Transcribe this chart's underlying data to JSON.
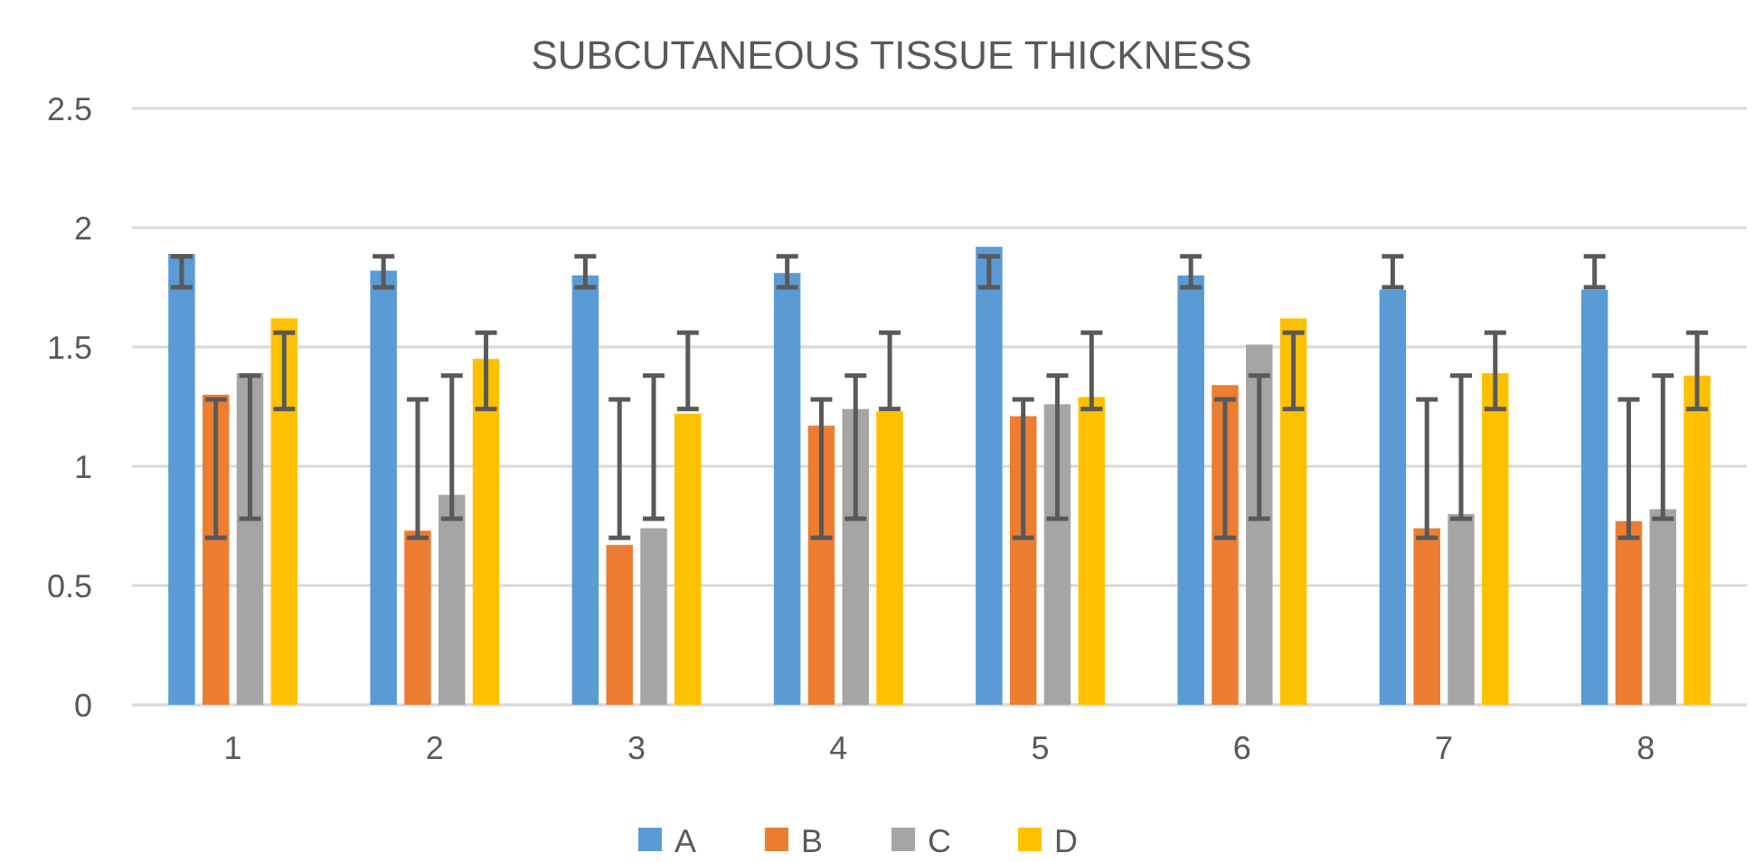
{
  "chart_data": {
    "type": "bar",
    "title": "SUBCUTANEOUS TISSUE THICKNESS",
    "categories": [
      "1",
      "2",
      "3",
      "4",
      "5",
      "6",
      "7",
      "8"
    ],
    "series": [
      {
        "name": "A",
        "color": "#5b9bd5",
        "values": [
          1.89,
          1.82,
          1.8,
          1.81,
          1.92,
          1.8,
          1.74,
          1.74
        ],
        "errors": [
          [
            1.75,
            1.88
          ],
          [
            1.75,
            1.88
          ],
          [
            1.75,
            1.88
          ],
          [
            1.75,
            1.88
          ],
          [
            1.75,
            1.88
          ],
          [
            1.75,
            1.88
          ],
          [
            1.75,
            1.88
          ],
          [
            1.75,
            1.88
          ]
        ]
      },
      {
        "name": "B",
        "color": "#ed7d31",
        "values": [
          1.3,
          0.73,
          0.67,
          1.17,
          1.21,
          1.34,
          0.74,
          0.77
        ],
        "errors": [
          [
            0.7,
            1.28
          ],
          [
            0.7,
            1.28
          ],
          [
            0.7,
            1.28
          ],
          [
            0.7,
            1.28
          ],
          [
            0.7,
            1.28
          ],
          [
            0.7,
            1.28
          ],
          [
            0.7,
            1.28
          ],
          [
            0.7,
            1.28
          ]
        ]
      },
      {
        "name": "C",
        "color": "#a5a5a5",
        "values": [
          1.39,
          0.88,
          0.74,
          1.24,
          1.26,
          1.51,
          0.8,
          0.82
        ],
        "errors": [
          [
            0.78,
            1.38
          ],
          [
            0.78,
            1.38
          ],
          [
            0.78,
            1.38
          ],
          [
            0.78,
            1.38
          ],
          [
            0.78,
            1.38
          ],
          [
            0.78,
            1.38
          ],
          [
            0.78,
            1.38
          ],
          [
            0.78,
            1.38
          ]
        ]
      },
      {
        "name": "D",
        "color": "#ffc000",
        "values": [
          1.62,
          1.45,
          1.22,
          1.23,
          1.29,
          1.62,
          1.39,
          1.38
        ],
        "errors": [
          [
            1.24,
            1.56
          ],
          [
            1.24,
            1.56
          ],
          [
            1.24,
            1.56
          ],
          [
            1.24,
            1.56
          ],
          [
            1.24,
            1.56
          ],
          [
            1.24,
            1.56
          ],
          [
            1.24,
            1.56
          ],
          [
            1.24,
            1.56
          ]
        ]
      }
    ],
    "ylim": [
      0,
      2.5
    ],
    "yticks": [
      0,
      0.5,
      1,
      1.5,
      2,
      2.5
    ],
    "grid": "y",
    "legend": "bottom"
  }
}
